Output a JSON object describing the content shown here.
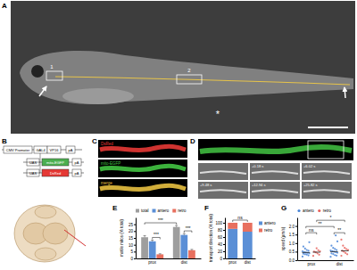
{
  "figure": {
    "panel_labels": [
      "A",
      "B",
      "C",
      "D",
      "E",
      "F",
      "G"
    ],
    "panel_a": {
      "box_labels": [
        "1",
        "2"
      ],
      "marker": "*"
    },
    "panel_b": {
      "construct_1": [
        "CMV Promoter",
        "GAL4",
        "VP16",
        "pA"
      ],
      "construct_2": [
        "UAS",
        "mito-EGFP",
        "pA"
      ],
      "construct_3": [
        "UAS",
        "DsRed",
        "pA"
      ]
    },
    "panel_c": {
      "channels": [
        "DsRed",
        "mito-EGFP",
        "merge"
      ]
    },
    "panel_d": {
      "times": [
        "+0.18 s",
        "+6.02 s",
        "+9.48 s",
        "+12.94 s",
        "+25.82 s"
      ]
    }
  },
  "chart_data": [
    {
      "type": "bar",
      "categories": [
        "prox",
        "dist"
      ],
      "y_label": "motile mitos (% total)",
      "series": [
        {
          "name": "total",
          "color": "#9e9e9e",
          "values": [
            15.5,
            23
          ],
          "errors": [
            1.2,
            1.1
          ]
        },
        {
          "name": "antero",
          "color": "#5b8fd6",
          "values": [
            12.5,
            17.2
          ],
          "errors": [
            0.9,
            1.0
          ]
        },
        {
          "name": "retro",
          "color": "#e8705f",
          "values": [
            3,
            6
          ],
          "errors": [
            0.4,
            0.6
          ]
        }
      ],
      "ylim": [
        0,
        30
      ],
      "yticks": [
        0,
        5,
        10,
        15,
        20,
        25
      ],
      "legend": "top",
      "annotations": [
        "***",
        "***",
        "***"
      ]
    },
    {
      "type": "bar",
      "stacked": true,
      "categories": [
        "prox",
        "dist"
      ],
      "y_label": "transport direction (% total)",
      "series": [
        {
          "name": "antero",
          "color": "#5b8fd6",
          "values": [
            83,
            75
          ]
        },
        {
          "name": "retro",
          "color": "#e8705f",
          "values": [
            17,
            25
          ]
        }
      ],
      "ylim": [
        0,
        115
      ],
      "yticks": [
        0,
        20,
        40,
        60,
        80,
        100
      ],
      "legend": "right",
      "annotations": [
        "ns"
      ]
    },
    {
      "type": "scatter",
      "categories": [
        "prox",
        "dist"
      ],
      "y_label": "speed (μm/s)",
      "series": [
        {
          "name": "antero",
          "color": "#4a86d8",
          "values": [
            [
              0.21,
              0.28,
              0.33,
              0.35,
              0.38,
              0.41,
              0.43,
              0.45,
              0.48,
              0.52,
              0.55,
              0.6,
              0.68,
              0.8,
              1.05
            ],
            [
              0.2,
              0.27,
              0.3,
              0.36,
              0.4,
              0.44,
              0.47,
              0.5,
              0.53,
              0.57,
              0.6,
              0.66,
              0.72,
              0.85,
              1.1,
              1.45
            ]
          ],
          "means": [
            0.45,
            0.5
          ]
        },
        {
          "name": "retro",
          "color": "#e8605a",
          "values": [
            [
              0.25,
              0.32,
              0.4,
              0.46,
              0.5,
              0.52,
              0.58,
              0.7
            ],
            [
              0.26,
              0.35,
              0.42,
              0.5,
              0.55,
              0.6,
              0.65,
              0.72,
              0.85,
              1.2
            ]
          ],
          "means": [
            0.47,
            0.55
          ]
        }
      ],
      "ylim": [
        0,
        2.5
      ],
      "yticks": [
        {
          "value": 0,
          "label": "0.0"
        },
        {
          "value": 0.5,
          "label": "0.5"
        },
        {
          "value": 1,
          "label": "1.0"
        },
        {
          "value": 1.5,
          "label": "1.5"
        },
        {
          "value": 2,
          "label": "2.0"
        }
      ],
      "legend": "top",
      "annotations": [
        "ns",
        "**",
        "**",
        "*"
      ]
    }
  ]
}
